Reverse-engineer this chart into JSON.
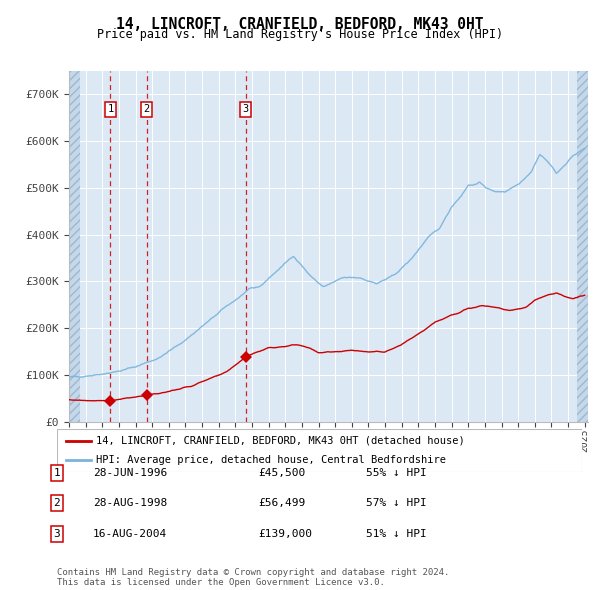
{
  "title": "14, LINCROFT, CRANFIELD, BEDFORD, MK43 0HT",
  "subtitle": "Price paid vs. HM Land Registry's House Price Index (HPI)",
  "y_ticks": [
    0,
    100000,
    200000,
    300000,
    400000,
    500000,
    600000,
    700000
  ],
  "y_tick_labels": [
    "£0",
    "£100K",
    "£200K",
    "£300K",
    "£400K",
    "£500K",
    "£600K",
    "£700K"
  ],
  "x_start_year": 1994,
  "x_end_year": 2025,
  "sales": [
    {
      "label": "1",
      "date": 1996.49,
      "price": 45500
    },
    {
      "label": "2",
      "date": 1998.66,
      "price": 56499
    },
    {
      "label": "3",
      "date": 2004.62,
      "price": 139000
    }
  ],
  "sale_info": [
    {
      "num": "1",
      "date_str": "28-JUN-1996",
      "price_str": "£45,500",
      "hpi_str": "55% ↓ HPI"
    },
    {
      "num": "2",
      "date_str": "28-AUG-1998",
      "price_str": "£56,499",
      "hpi_str": "57% ↓ HPI"
    },
    {
      "num": "3",
      "date_str": "16-AUG-2004",
      "price_str": "£139,000",
      "hpi_str": "51% ↓ HPI"
    }
  ],
  "legend_line1": "14, LINCROFT, CRANFIELD, BEDFORD, MK43 0HT (detached house)",
  "legend_line2": "HPI: Average price, detached house, Central Bedfordshire",
  "footer": "Contains HM Land Registry data © Crown copyright and database right 2024.\nThis data is licensed under the Open Government Licence v3.0.",
  "plot_bg_color": "#dce9f5",
  "red_line_color": "#cc0000",
  "blue_line_color": "#7ab4dc",
  "grid_color": "#ffffff",
  "hatch_color": "#b8cfe0"
}
